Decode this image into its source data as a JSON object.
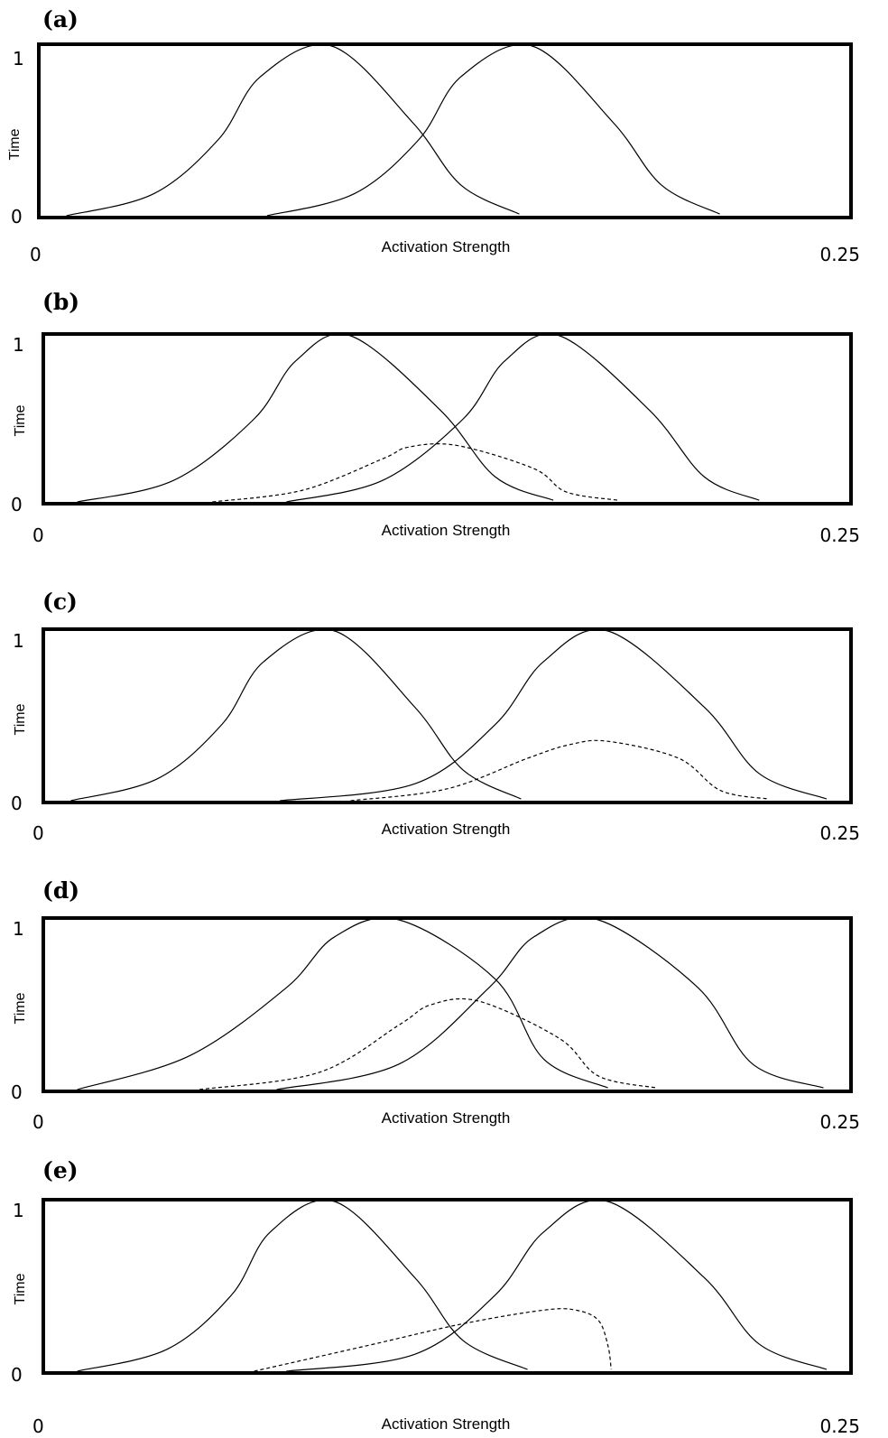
{
  "chart_data": [
    {
      "panel": "(a)",
      "type": "line",
      "xlabel": "Activation Strength",
      "ylabel": "Time",
      "xlim": [
        0,
        0.25
      ],
      "ylim": [
        0,
        1
      ],
      "xticks": [
        "0",
        "0.25"
      ],
      "yticks": [
        "0",
        "1"
      ],
      "series": [
        {
          "style": "solid",
          "x": [
            0.008,
            0.035,
            0.055,
            0.068,
            0.09,
            0.115,
            0.13,
            0.148
          ],
          "y": [
            0,
            0.13,
            0.45,
            0.82,
            1.0,
            0.55,
            0.18,
            0.01
          ]
        },
        {
          "style": "solid",
          "x": [
            0.07,
            0.097,
            0.117,
            0.13,
            0.152,
            0.177,
            0.192,
            0.21
          ],
          "y": [
            0,
            0.13,
            0.45,
            0.82,
            1.0,
            0.55,
            0.18,
            0.01
          ]
        }
      ]
    },
    {
      "panel": "(b)",
      "type": "line",
      "xlabel": "Activation Strength",
      "ylabel": "Time",
      "xlim": [
        0,
        0.25
      ],
      "ylim": [
        0,
        1
      ],
      "xticks": [
        "0",
        "0.25"
      ],
      "yticks": [
        "0",
        "1"
      ],
      "series": [
        {
          "style": "solid",
          "x": [
            0.01,
            0.04,
            0.065,
            0.078,
            0.095,
            0.123,
            0.14,
            0.158
          ],
          "y": [
            0,
            0.13,
            0.5,
            0.85,
            1.0,
            0.55,
            0.15,
            0.01
          ]
        },
        {
          "style": "solid",
          "x": [
            0.075,
            0.105,
            0.13,
            0.143,
            0.16,
            0.188,
            0.205,
            0.222
          ],
          "y": [
            0,
            0.13,
            0.5,
            0.85,
            1.0,
            0.55,
            0.15,
            0.01
          ]
        },
        {
          "style": "dashed",
          "x": [
            0.052,
            0.08,
            0.105,
            0.113,
            0.128,
            0.152,
            0.162,
            0.178
          ],
          "y": [
            0,
            0.07,
            0.26,
            0.33,
            0.34,
            0.2,
            0.06,
            0.01
          ]
        }
      ]
    },
    {
      "panel": "(c)",
      "type": "line",
      "xlabel": "Activation Strength",
      "ylabel": "Time",
      "xlim": [
        0,
        0.25
      ],
      "ylim": [
        0,
        1
      ],
      "xticks": [
        "0",
        "0.25"
      ],
      "yticks": [
        "0",
        "1"
      ],
      "series": [
        {
          "style": "solid",
          "x": [
            0.008,
            0.035,
            0.055,
            0.068,
            0.09,
            0.115,
            0.13,
            0.148
          ],
          "y": [
            0,
            0.13,
            0.45,
            0.82,
            1.0,
            0.55,
            0.18,
            0.01
          ]
        },
        {
          "style": "solid",
          "x": [
            0.073,
            0.115,
            0.14,
            0.155,
            0.175,
            0.205,
            0.222,
            0.243
          ],
          "y": [
            0,
            0.1,
            0.45,
            0.82,
            1.0,
            0.55,
            0.16,
            0.01
          ]
        },
        {
          "style": "dashed",
          "x": [
            0.095,
            0.125,
            0.15,
            0.163,
            0.175,
            0.197,
            0.21,
            0.225
          ],
          "y": [
            0,
            0.07,
            0.25,
            0.33,
            0.35,
            0.25,
            0.06,
            0.01
          ]
        }
      ]
    },
    {
      "panel": "(d)",
      "type": "line",
      "xlabel": "Activation Strength",
      "ylabel": "Time",
      "xlim": [
        0,
        0.25
      ],
      "ylim": [
        0,
        1
      ],
      "xticks": [
        "0",
        "0.25"
      ],
      "yticks": [
        "0",
        "1"
      ],
      "series": [
        {
          "style": "solid",
          "x": [
            0.01,
            0.045,
            0.075,
            0.09,
            0.11,
            0.14,
            0.155,
            0.175
          ],
          "y": [
            0,
            0.2,
            0.6,
            0.9,
            1.0,
            0.65,
            0.18,
            0.01
          ]
        },
        {
          "style": "solid",
          "x": [
            0.072,
            0.11,
            0.138,
            0.152,
            0.172,
            0.203,
            0.22,
            0.242
          ],
          "y": [
            0,
            0.15,
            0.6,
            0.9,
            1.0,
            0.6,
            0.15,
            0.01
          ]
        },
        {
          "style": "dashed",
          "x": [
            0.048,
            0.085,
            0.11,
            0.12,
            0.135,
            0.16,
            0.172,
            0.19
          ],
          "y": [
            0,
            0.1,
            0.38,
            0.5,
            0.52,
            0.3,
            0.08,
            0.01
          ]
        }
      ]
    },
    {
      "panel": "(e)",
      "type": "line",
      "xlabel": "Activation Strength",
      "ylabel": "Time",
      "xlim": [
        0,
        0.25
      ],
      "ylim": [
        0,
        1
      ],
      "xticks": [
        "0",
        "0.25"
      ],
      "yticks": [
        "0",
        "1"
      ],
      "series": [
        {
          "style": "solid",
          "x": [
            0.01,
            0.038,
            0.058,
            0.07,
            0.09,
            0.115,
            0.13,
            0.15
          ],
          "y": [
            0,
            0.13,
            0.45,
            0.82,
            1.0,
            0.55,
            0.18,
            0.01
          ]
        },
        {
          "style": "solid",
          "x": [
            0.075,
            0.115,
            0.14,
            0.155,
            0.175,
            0.205,
            0.222,
            0.243
          ],
          "y": [
            0,
            0.1,
            0.45,
            0.82,
            1.0,
            0.55,
            0.16,
            0.01
          ]
        },
        {
          "style": "dashed",
          "x": [
            0.065,
            0.1,
            0.13,
            0.155,
            0.165,
            0.172,
            0.175,
            0.176
          ],
          "y": [
            0,
            0.15,
            0.28,
            0.36,
            0.36,
            0.3,
            0.15,
            0.01
          ]
        }
      ]
    }
  ]
}
